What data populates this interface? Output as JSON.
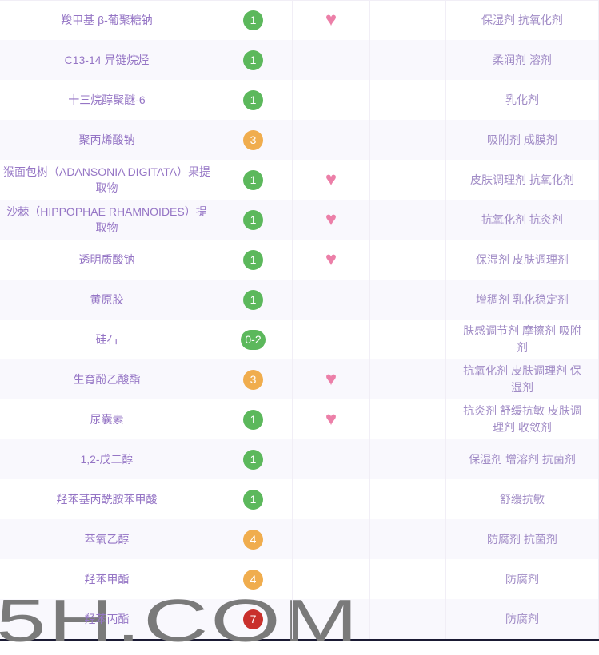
{
  "table": {
    "rows": [
      {
        "name": "羧甲基 β-葡聚糖钠",
        "badge": "1",
        "badge_color": "#5cb85c",
        "heart_icon": "♥",
        "functions": "保湿剂 抗氧化剂"
      },
      {
        "name": "C13-14 异链烷烃",
        "badge": "1",
        "badge_color": "#5cb85c",
        "heart_icon": "",
        "functions": "柔润剂 溶剂"
      },
      {
        "name": "十三烷醇聚醚-6",
        "badge": "1",
        "badge_color": "#5cb85c",
        "heart_icon": "",
        "functions": "乳化剂"
      },
      {
        "name": "聚丙烯酸钠",
        "badge": "3",
        "badge_color": "#f0ad4e",
        "heart_icon": "",
        "functions": "吸附剂 成膜剂"
      },
      {
        "name": "猴面包树（ADANSONIA DIGITATA）果提取物",
        "badge": "1",
        "badge_color": "#5cb85c",
        "heart_icon": "♥",
        "functions": "皮肤调理剂 抗氧化剂"
      },
      {
        "name": "沙棘（HIPPOPHAE RHAMNOIDES）提取物",
        "badge": "1",
        "badge_color": "#5cb85c",
        "heart_icon": "♥",
        "functions": "抗氧化剂 抗炎剂"
      },
      {
        "name": "透明质酸钠",
        "badge": "1",
        "badge_color": "#5cb85c",
        "heart_icon": "♥",
        "functions": "保湿剂 皮肤调理剂"
      },
      {
        "name": "黄原胶",
        "badge": "1",
        "badge_color": "#5cb85c",
        "heart_icon": "",
        "functions": "增稠剂 乳化稳定剂"
      },
      {
        "name": "硅石",
        "badge": "0-2",
        "badge_color": "#5cb85c",
        "heart_icon": "",
        "functions": "肤感调节剂 摩擦剂 吸附剂"
      },
      {
        "name": "生育酚乙酸酯",
        "badge": "3",
        "badge_color": "#f0ad4e",
        "heart_icon": "♥",
        "functions": "抗氧化剂 皮肤调理剂 保湿剂"
      },
      {
        "name": "尿囊素",
        "badge": "1",
        "badge_color": "#5cb85c",
        "heart_icon": "♥",
        "functions": "抗炎剂 舒缓抗敏 皮肤调理剂 收敛剂"
      },
      {
        "name": "1,2-戊二醇",
        "badge": "1",
        "badge_color": "#5cb85c",
        "heart_icon": "",
        "functions": "保湿剂 增溶剂 抗菌剂"
      },
      {
        "name": "羟苯基丙酰胺苯甲酸",
        "badge": "1",
        "badge_color": "#5cb85c",
        "heart_icon": "",
        "functions": "舒缓抗敏"
      },
      {
        "name": "苯氧乙醇",
        "badge": "4",
        "badge_color": "#f0ad4e",
        "heart_icon": "",
        "functions": "防腐剂 抗菌剂"
      },
      {
        "name": "羟苯甲酯",
        "badge": "4",
        "badge_color": "#f0ad4e",
        "heart_icon": "",
        "functions": "防腐剂"
      },
      {
        "name": "羟苯丙酯",
        "badge": "7",
        "badge_color": "#c9302c",
        "heart_icon": "",
        "functions": "防腐剂"
      }
    ]
  },
  "watermark": {
    "text": "5H.COM"
  },
  "colors": {
    "badge_green": "#5cb85c",
    "badge_orange": "#f0ad4e",
    "badge_red": "#c9302c",
    "heart_pink": "#ec7fa8",
    "row_alt_bg": "#f9f8fd",
    "name_text": "#9575c5",
    "function_text": "#a18cc6"
  }
}
